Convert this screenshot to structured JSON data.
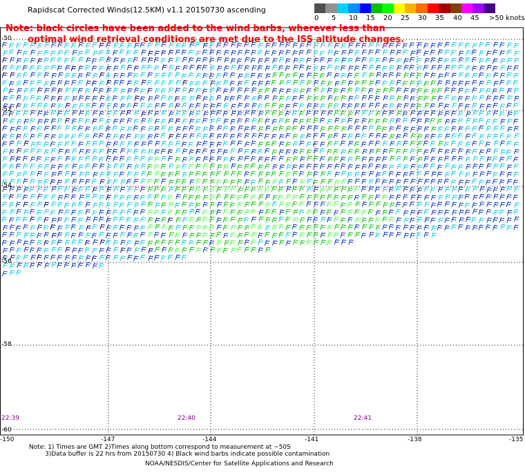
{
  "title": "Rapidscat Corrected Winds(12.5KM) v1.1 20150730 ascending",
  "note_line1": "Note: black circles have been added to the wind barbs, wherever less than",
  "note_line2": "optimal wind retrieval conditions are met due to the ISS altitude changes.",
  "legend": {
    "labels": [
      "0",
      "5",
      "10",
      "15",
      "20",
      "25",
      "30",
      "35",
      "40",
      "45",
      ">50 knots"
    ],
    "colors": [
      "#505050",
      "#909090",
      "#00d0ff",
      "#0090ff",
      "#0000ff",
      "#00c000",
      "#00ff00",
      "#ffff00",
      "#ffb000",
      "#ff7000",
      "#ff0000",
      "#a00000",
      "#804000",
      "#ff00ff",
      "#a000ff",
      "#400080"
    ]
  },
  "lat_labels": [
    "-50",
    "-52",
    "-54",
    "-56",
    "-58",
    "-60"
  ],
  "lon_labels": [
    "-150",
    "-147",
    "-144",
    "-141",
    "-138",
    "-135"
  ],
  "times": [
    "22:39",
    "22:40",
    "22:41"
  ],
  "footer": {
    "line1": "Note: 1) Times are GMT 2)Times along bottom correspond to measurement at ~50S",
    "line2": "3)Data buffer is 22 hrs from 20150730 4) Black wind barbs indicate possible contamination",
    "line3": "NOAA/NESDIS/Center for Satellite Applications and Research"
  },
  "barb_colors": {
    "cyan": "#00c8e8",
    "blue": "#0030d0",
    "navy": "#000090",
    "green": "#00c000",
    "lightgreen": "#40ff40",
    "yellow": "#e0e000",
    "brown": "#603020"
  }
}
